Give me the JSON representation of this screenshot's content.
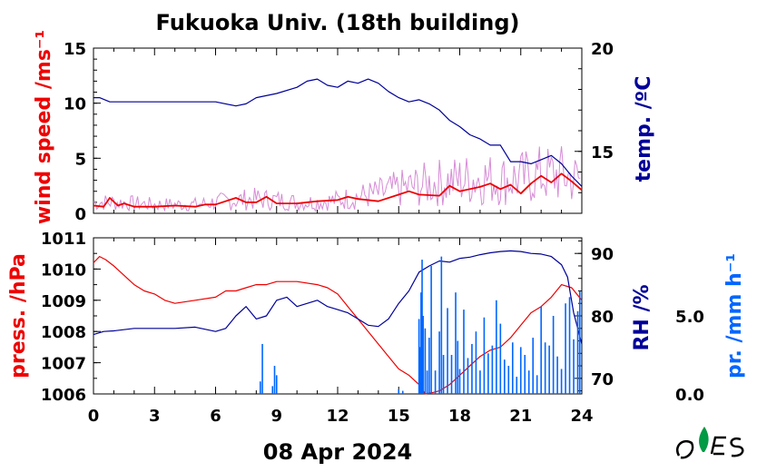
{
  "title": "Fukuoka Univ. (18th building)",
  "date_label": "08 Apr 2024",
  "colors": {
    "wind": "#ee0000",
    "wind_gust": "#d68cd6",
    "temp": "#000099",
    "press": "#ee0000",
    "rh": "#000099",
    "precip": "#0066ff",
    "axis": "#000000"
  },
  "chart_data": [
    {
      "type": "line",
      "panel": "top",
      "xlim": [
        0,
        24
      ],
      "x_ticks": [
        "0",
        "3",
        "6",
        "9",
        "12",
        "15",
        "18",
        "21",
        "24"
      ],
      "left_axis": {
        "label": "wind speed /ms⁻¹",
        "lim": [
          0,
          15
        ],
        "ticks": [
          "0",
          "5",
          "10",
          "15"
        ]
      },
      "right_axis": {
        "label": "temp. /ºC",
        "lim": [
          12,
          20
        ],
        "ticks": [
          "15",
          "20"
        ]
      },
      "series": [
        {
          "key": "wind_gust",
          "axis": "left",
          "style": "noisy",
          "x": [
            0,
            1,
            2,
            3,
            4,
            5,
            6,
            7,
            8,
            9,
            10,
            11,
            12,
            13,
            14,
            15,
            16,
            17,
            18,
            19,
            20,
            21,
            22,
            23,
            24
          ],
          "y": [
            1.0,
            1.0,
            0.9,
            0.8,
            0.8,
            0.8,
            1.0,
            1.2,
            1.3,
            1.2,
            1.0,
            1.0,
            1.2,
            1.5,
            1.8,
            2.2,
            2.5,
            2.8,
            3.0,
            3.2,
            3.0,
            3.2,
            3.5,
            3.5,
            3.0
          ]
        },
        {
          "key": "wind",
          "axis": "left",
          "style": "line",
          "x": [
            0,
            0.5,
            0.8,
            1.2,
            1.5,
            2,
            3,
            4,
            5,
            5.5,
            6,
            7,
            7.5,
            8,
            8.5,
            9,
            10,
            11,
            12,
            12.5,
            13,
            14,
            15,
            15.5,
            16,
            17,
            17.5,
            18,
            19,
            19.5,
            20,
            20.5,
            21,
            21.5,
            22,
            22.5,
            23,
            23.5,
            24
          ],
          "y": [
            0.7,
            0.6,
            1.4,
            0.7,
            0.9,
            0.6,
            0.6,
            0.7,
            0.6,
            0.8,
            0.8,
            1.4,
            1.0,
            1.0,
            1.5,
            0.9,
            0.9,
            1.1,
            1.2,
            1.5,
            1.3,
            1.1,
            1.7,
            2.0,
            1.7,
            1.6,
            2.5,
            2.0,
            2.4,
            2.7,
            2.2,
            2.6,
            1.8,
            2.7,
            3.4,
            2.8,
            3.6,
            2.9,
            2.1
          ]
        },
        {
          "key": "temp",
          "axis": "right",
          "style": "line",
          "x": [
            0,
            0.3,
            0.8,
            1.5,
            3,
            4,
            5,
            6,
            7,
            7.5,
            8,
            9,
            10,
            10.5,
            11,
            11.5,
            12,
            12.5,
            13,
            13.5,
            14,
            14.5,
            15,
            15.5,
            16,
            16.5,
            17,
            17.5,
            18,
            18.5,
            19,
            19.5,
            20,
            20.5,
            21,
            21.5,
            22,
            22.5,
            23,
            23.5,
            24
          ],
          "y": [
            17.6,
            17.6,
            17.4,
            17.4,
            17.4,
            17.4,
            17.4,
            17.4,
            17.2,
            17.3,
            17.6,
            17.8,
            18.1,
            18.4,
            18.5,
            18.2,
            18.1,
            18.4,
            18.3,
            18.5,
            18.3,
            17.9,
            17.6,
            17.4,
            17.5,
            17.3,
            17.0,
            16.5,
            16.2,
            15.8,
            15.6,
            15.3,
            15.3,
            14.5,
            14.5,
            14.4,
            14.6,
            14.8,
            14.4,
            13.8,
            13.3
          ]
        }
      ]
    },
    {
      "type": "line",
      "panel": "bottom",
      "xlim": [
        0,
        24
      ],
      "x_ticks": [
        "0",
        "3",
        "6",
        "9",
        "12",
        "15",
        "18",
        "21",
        "24"
      ],
      "xlabel": "08 Apr 2024",
      "left_axis": {
        "label": "press. /hPa",
        "lim": [
          1006,
          1011
        ],
        "ticks": [
          "1006",
          "1007",
          "1008",
          "1009",
          "1010",
          "1011"
        ]
      },
      "right_axis": {
        "label": "RH /%",
        "lim": [
          67.5,
          92.5
        ],
        "ticks": [
          "70",
          "80",
          "90"
        ]
      },
      "precip_axis": {
        "label": "pr. /mm h⁻¹",
        "lim": [
          0,
          10
        ],
        "ticks": [
          "0.0",
          "5.0"
        ]
      },
      "series": [
        {
          "key": "press",
          "axis": "left",
          "style": "line",
          "x": [
            0,
            0.3,
            0.6,
            1,
            1.5,
            2,
            2.5,
            3,
            3.5,
            4,
            5,
            6,
            6.5,
            7,
            7.5,
            8,
            8.5,
            9,
            10,
            11,
            11.5,
            12,
            12.5,
            13,
            13.5,
            14,
            14.5,
            15,
            15.5,
            16,
            16.3,
            16.7,
            17,
            17.5,
            18,
            18.5,
            19,
            19.5,
            20,
            20.5,
            21,
            21.5,
            22,
            22.5,
            23,
            23.5,
            24
          ],
          "y": [
            1010.2,
            1010.4,
            1010.3,
            1010.1,
            1009.8,
            1009.5,
            1009.3,
            1009.2,
            1009.0,
            1008.9,
            1009.0,
            1009.1,
            1009.3,
            1009.3,
            1009.4,
            1009.5,
            1009.5,
            1009.6,
            1009.6,
            1009.5,
            1009.4,
            1009.2,
            1008.8,
            1008.4,
            1008.0,
            1007.6,
            1007.2,
            1006.8,
            1006.6,
            1006.3,
            1006.0,
            1006.05,
            1006.1,
            1006.3,
            1006.6,
            1006.9,
            1007.2,
            1007.4,
            1007.5,
            1007.8,
            1008.2,
            1008.6,
            1008.8,
            1009.1,
            1009.5,
            1009.4,
            1009.0
          ]
        },
        {
          "key": "rh",
          "axis": "right",
          "style": "line",
          "x": [
            0,
            0.5,
            1,
            2,
            3,
            4,
            5,
            6,
            6.5,
            7,
            7.5,
            8,
            8.5,
            9,
            9.5,
            10,
            11,
            11.5,
            12,
            12.5,
            13,
            13.5,
            14,
            14.5,
            15,
            15.5,
            16,
            16.5,
            17,
            17.5,
            18,
            18.5,
            19,
            19.5,
            20,
            20.5,
            21,
            21.5,
            22,
            22.5,
            23,
            23.3,
            23.6,
            24
          ],
          "y": [
            77,
            77.5,
            77.6,
            78,
            78,
            78,
            78.2,
            77.5,
            78,
            80,
            81.5,
            79.5,
            80,
            82.5,
            83,
            81.5,
            82.5,
            81.5,
            81,
            80.5,
            79.5,
            78.5,
            78.3,
            79.5,
            82,
            84,
            87,
            88,
            88.8,
            88.6,
            89.2,
            89.4,
            89.8,
            90.1,
            90.3,
            90.4,
            90.3,
            90,
            89.9,
            89.5,
            88.2,
            86.2,
            80.5,
            75.5
          ]
        },
        {
          "key": "precip",
          "axis": "precip",
          "style": "bars",
          "x": [
            8.2,
            8.3,
            8.8,
            8.9,
            9.0,
            15.0,
            15.2,
            16.0,
            16.05,
            16.1,
            16.15,
            16.2,
            16.3,
            16.4,
            16.5,
            16.6,
            16.8,
            17.0,
            17.1,
            17.2,
            17.4,
            17.6,
            17.8,
            17.9,
            18.0,
            18.2,
            18.4,
            18.6,
            18.8,
            19.0,
            19.2,
            19.4,
            19.6,
            19.8,
            20.0,
            20.2,
            20.4,
            20.6,
            20.8,
            21.0,
            21.2,
            21.4,
            21.6,
            21.8,
            22.0,
            22.2,
            22.4,
            22.6,
            22.8,
            23.0,
            23.2,
            23.4,
            23.6,
            23.8,
            23.9
          ],
          "y": [
            0.8,
            3.2,
            0.5,
            1.8,
            1.2,
            0.3,
            0.2,
            4.8,
            3.0,
            6.5,
            8.6,
            5.0,
            4.2,
            1.5,
            3.6,
            8.2,
            1.5,
            4.0,
            8.8,
            2.5,
            5.5,
            2.5,
            6.5,
            3.4,
            1.6,
            5.4,
            2.3,
            3.2,
            4.0,
            1.5,
            4.9,
            2.6,
            3.1,
            6.0,
            4.5,
            2.2,
            1.8,
            3.3,
            1.1,
            3.0,
            2.5,
            1.5,
            3.6,
            1.2,
            5.6,
            3.3,
            3.1,
            5.0,
            2.4,
            1.6,
            5.8,
            6.2,
            3.5,
            5.3,
            6.6
          ]
        }
      ]
    }
  ]
}
